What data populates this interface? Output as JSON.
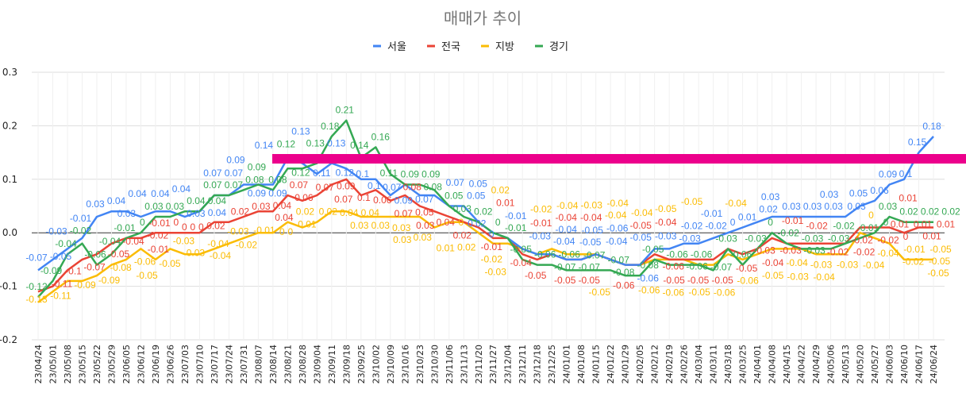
{
  "chart_data": {
    "type": "line",
    "title": "매매가 추이",
    "xlabel": "",
    "ylabel": "",
    "ylim": [
      -0.2,
      0.3
    ],
    "yticks": [
      "0.3",
      "0.2",
      "0.1",
      "0.0",
      "-0.1",
      "-0.2"
    ],
    "ytick_values": [
      0.3,
      0.2,
      0.1,
      0.0,
      -0.1,
      -0.2
    ],
    "grid": true,
    "legend": "top",
    "data_labels": true,
    "highlight_band_color": "#EC008C",
    "categories": [
      "23/04/24",
      "23/05/01",
      "23/05/08",
      "23/05/15",
      "23/05/22",
      "23/05/29",
      "23/06/05",
      "23/06/12",
      "23/06/19",
      "23/06/26",
      "23/07/03",
      "23/07/10",
      "23/07/17",
      "23/07/24",
      "23/07/31",
      "23/08/07",
      "23/08/14",
      "23/08/21",
      "23/08/28",
      "23/09/04",
      "23/09/11",
      "23/09/18",
      "23/09/25",
      "23/10/02",
      "23/10/09",
      "23/10/16",
      "23/10/23",
      "23/10/30",
      "23/11/06",
      "23/11/13",
      "23/11/20",
      "23/11/27",
      "23/12/04",
      "23/12/11",
      "23/12/18",
      "23/12/25",
      "24/01/01",
      "24/01/08",
      "24/01/15",
      "24/01/22",
      "24/01/29",
      "24/02/05",
      "24/02/12",
      "24/02/19",
      "24/02/26",
      "24/03/04",
      "24/03/11",
      "24/03/18",
      "24/03/25",
      "24/04/01",
      "24/04/08",
      "24/04/15",
      "24/04/22",
      "24/04/29",
      "24/05/06",
      "24/05/13",
      "24/05/20",
      "24/05/27",
      "24/06/03",
      "24/06/10",
      "24/06/17",
      "24/06/24"
    ],
    "series": [
      {
        "name": "서울",
        "color": "#4285F4",
        "values": [
          -0.07,
          -0.05,
          -0.03,
          -0.01,
          0.03,
          0.04,
          0.04,
          0.03,
          0.04,
          0.04,
          0.03,
          0.04,
          0.07,
          0.07,
          0.09,
          0.09,
          0.09,
          0.14,
          0.13,
          0.11,
          0.13,
          0.12,
          0.1,
          0.1,
          0.07,
          0.09,
          0.07,
          0.07,
          0.05,
          0.05,
          0.02,
          0,
          -0.01,
          -0.03,
          -0.04,
          -0.04,
          -0.05,
          -0.05,
          -0.04,
          -0.05,
          -0.06,
          -0.06,
          -0.03,
          -0.03,
          -0.02,
          -0.02,
          -0.01,
          0,
          0.01,
          0.02,
          0.03,
          0.03,
          0.03,
          0.03,
          0.03,
          0.03,
          0.05,
          0.06,
          0.09,
          0.1,
          0.15,
          0.18
        ]
      },
      {
        "name": "전국",
        "color": "#EA4335",
        "values": [
          -0.11,
          -0.1,
          -0.07,
          -0.05,
          -0.04,
          -0.02,
          -0.01,
          -0.01,
          0,
          0,
          0,
          0,
          0.02,
          0.02,
          0.03,
          0.04,
          0.04,
          0.07,
          0.06,
          0.07,
          0.09,
          0.1,
          0.07,
          0.08,
          0.06,
          0.07,
          0.05,
          0.04,
          0.03,
          0.02,
          0.01,
          -0.01,
          -0.01,
          -0.04,
          -0.05,
          -0.04,
          -0.05,
          -0.05,
          -0.04,
          -0.05,
          -0.06,
          -0.06,
          -0.04,
          -0.05,
          -0.05,
          -0.05,
          -0.05,
          -0.03,
          -0.04,
          -0.03,
          -0.01,
          -0.02,
          -0.02,
          -0.02,
          -0.02,
          -0.02,
          0.01,
          0.01,
          0.01,
          0,
          0.01,
          0.01
        ]
      },
      {
        "name": "지방",
        "color": "#FBBC04",
        "values": [
          -0.13,
          -0.11,
          -0.09,
          -0.09,
          -0.08,
          -0.06,
          -0.05,
          -0.03,
          -0.05,
          -0.03,
          -0.04,
          -0.04,
          -0.03,
          -0.02,
          -0.01,
          0,
          0,
          0.02,
          0.01,
          0.02,
          0.04,
          0.04,
          0.03,
          0.03,
          0.03,
          0.03,
          0.03,
          0.01,
          0.02,
          0.02,
          0,
          -0.02,
          -0.02,
          -0.03,
          -0.04,
          -0.03,
          -0.04,
          -0.04,
          -0.04,
          -0.05,
          -0.06,
          -0.06,
          -0.05,
          -0.05,
          -0.05,
          -0.06,
          -0.06,
          -0.04,
          -0.05,
          -0.04,
          -0.03,
          -0.03,
          -0.03,
          -0.04,
          -0.04,
          -0.04,
          0,
          -0.01,
          -0.02,
          -0.05,
          -0.05,
          -0.05
        ]
      },
      {
        "name": "경기",
        "color": "#34A853",
        "values": [
          -0.12,
          -0.09,
          -0.04,
          -0.02,
          -0.06,
          -0.04,
          -0.01,
          0,
          0.03,
          0.03,
          0.04,
          0.04,
          0.07,
          0.07,
          0.08,
          0.09,
          0.08,
          0.12,
          0.12,
          0.13,
          0.18,
          0.21,
          0.14,
          0.16,
          0.11,
          0.09,
          0.09,
          0.08,
          0.05,
          0.03,
          0.02,
          0,
          -0.01,
          -0.05,
          -0.06,
          -0.06,
          -0.07,
          -0.07,
          -0.07,
          -0.07,
          -0.08,
          -0.08,
          -0.05,
          -0.06,
          -0.06,
          -0.06,
          -0.07,
          -0.03,
          -0.06,
          -0.03,
          0,
          -0.02,
          -0.03,
          -0.03,
          -0.03,
          -0.02,
          -0.01,
          0,
          0.03,
          0.02,
          0.02,
          0.02
        ]
      }
    ]
  }
}
